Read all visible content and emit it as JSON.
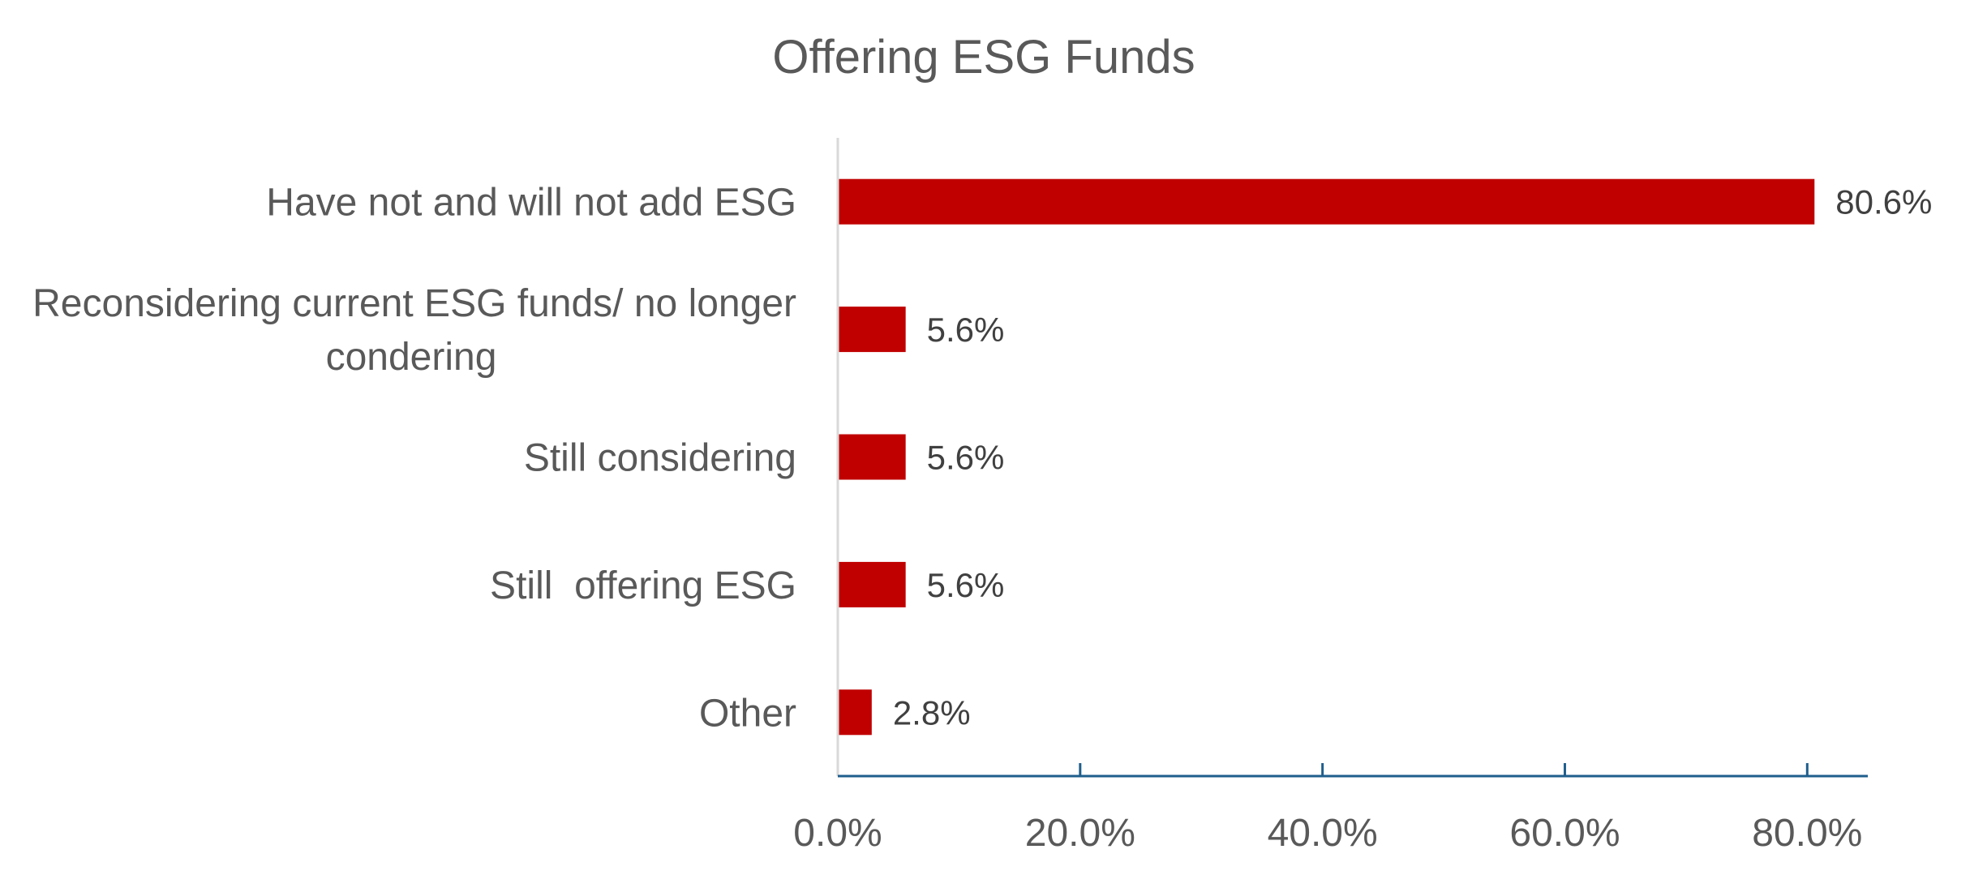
{
  "chart_data": {
    "type": "bar",
    "orientation": "horizontal",
    "title": "Offering ESG Funds",
    "categories": [
      [
        "Have not and will not add ESG"
      ],
      [
        "Reconsidering current ESG funds/ no longer",
        "condering"
      ],
      [
        "Still considering"
      ],
      [
        "Still  offering ESG"
      ],
      [
        "Other"
      ]
    ],
    "values": [
      80.6,
      5.6,
      5.6,
      5.6,
      2.8
    ],
    "value_labels": [
      "80.6%",
      "5.6%",
      "5.6%",
      "5.6%",
      "2.8%"
    ],
    "xlim": [
      0,
      85
    ],
    "x_ticks": [
      0,
      20,
      40,
      60,
      80
    ],
    "x_tick_labels": [
      "0.0%",
      "20.0%",
      "40.0%",
      "60.0%",
      "80.0%"
    ],
    "xlabel": "",
    "ylabel": "",
    "grid": false,
    "legend": "none",
    "colors": {
      "bar": "#C00000",
      "axis": "#1F5E8C",
      "category_axis": "#D9D9D9",
      "title": "#595959",
      "labels": "#595959",
      "data_labels": "#404040"
    }
  }
}
